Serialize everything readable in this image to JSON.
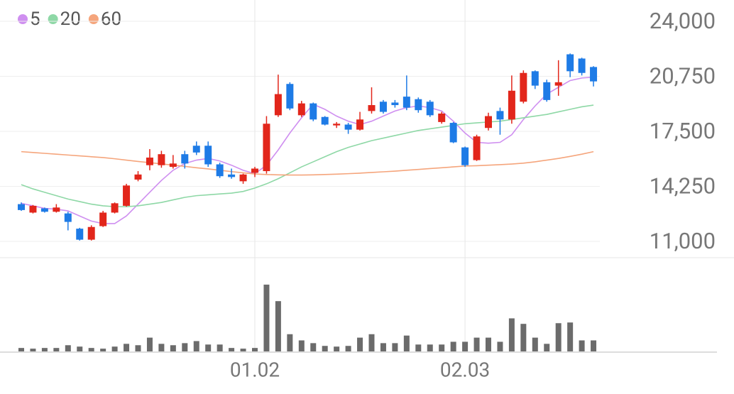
{
  "chart_data": {
    "type": "candlestick",
    "categories": [
      null,
      null,
      null,
      null,
      null,
      null,
      null,
      null,
      null,
      null,
      null,
      null,
      null,
      null,
      null,
      null,
      null,
      null,
      null,
      null,
      "01.02",
      null,
      null,
      null,
      null,
      null,
      null,
      null,
      null,
      null,
      null,
      null,
      null,
      null,
      null,
      null,
      null,
      null,
      "02.03",
      null,
      null,
      null,
      null,
      null,
      null,
      null,
      null,
      null,
      null,
      null
    ],
    "open": [
      13200,
      12700,
      12950,
      12750,
      12650,
      11750,
      11100,
      11900,
      12700,
      13100,
      14650,
      15500,
      15500,
      15400,
      16150,
      16650,
      16650,
      15550,
      14950,
      14550,
      15050,
      15150,
      18450,
      20300,
      18450,
      19150,
      18350,
      17850,
      17900,
      17600,
      18700,
      19250,
      19200,
      19550,
      19400,
      19250,
      18050,
      18000,
      16550,
      15800,
      17700,
      18700,
      18200,
      19250,
      21050,
      20400,
      20200,
      22050,
      21800,
      21300
    ],
    "high": [
      13300,
      13150,
      13000,
      13200,
      12750,
      11800,
      11950,
      12800,
      13300,
      14400,
      15150,
      16450,
      16350,
      16100,
      16350,
      16900,
      16900,
      15650,
      15300,
      15000,
      15400,
      18400,
      20850,
      20400,
      19300,
      19200,
      18400,
      18050,
      18000,
      18650,
      20100,
      19350,
      19350,
      20800,
      19500,
      19350,
      18650,
      18050,
      16600,
      17300,
      18600,
      18900,
      20800,
      21100,
      21100,
      20550,
      21700,
      22100,
      21850,
      21350
    ],
    "low": [
      12800,
      12650,
      12700,
      12700,
      11650,
      11050,
      11050,
      11850,
      12650,
      13050,
      14550,
      15200,
      15350,
      15300,
      15300,
      16100,
      15400,
      14750,
      14700,
      14400,
      14800,
      15000,
      18350,
      18750,
      18350,
      18100,
      17850,
      17700,
      17350,
      17550,
      18550,
      18550,
      18900,
      18750,
      18600,
      18350,
      17950,
      16800,
      15400,
      15750,
      17550,
      17300,
      17950,
      19150,
      20000,
      19250,
      19600,
      20700,
      20800,
      20150
    ],
    "close": [
      12850,
      13100,
      12750,
      13000,
      12150,
      11100,
      11850,
      12700,
      13250,
      14300,
      14950,
      15950,
      16150,
      15600,
      15600,
      16250,
      15550,
      14850,
      14800,
      14950,
      15300,
      17950,
      19700,
      18850,
      19150,
      18200,
      17900,
      17950,
      17600,
      18200,
      19050,
      18650,
      19050,
      18900,
      18750,
      18450,
      18550,
      16850,
      15500,
      17200,
      18400,
      18200,
      19900,
      20950,
      20200,
      19350,
      20400,
      21050,
      20950,
      20450
    ],
    "up_color": "#e2261b",
    "down_color": "#1e7be6",
    "series": [
      {
        "name": "5",
        "color": "#cf8ff0",
        "values": [
          13250,
          13100,
          12950,
          12900,
          12800,
          12500,
          12200,
          12050,
          12050,
          12500,
          13200,
          13900,
          14600,
          15200,
          15600,
          15800,
          15900,
          15750,
          15500,
          15200,
          15000,
          15500,
          16400,
          17400,
          18300,
          19100,
          18800,
          18400,
          18100,
          17900,
          18100,
          18400,
          18700,
          18900,
          19000,
          18900,
          18700,
          18100,
          17400,
          16850,
          16800,
          16850,
          17300,
          18200,
          19000,
          19700,
          20100,
          20500,
          20650,
          20700
        ]
      },
      {
        "name": "20",
        "color": "#8ed8a6",
        "values": [
          14350,
          14100,
          13900,
          13700,
          13500,
          13350,
          13200,
          13100,
          13050,
          13050,
          13100,
          13200,
          13300,
          13450,
          13600,
          13700,
          13750,
          13800,
          13850,
          13950,
          14150,
          14400,
          14700,
          15050,
          15400,
          15700,
          16000,
          16300,
          16550,
          16750,
          16950,
          17100,
          17250,
          17400,
          17550,
          17650,
          17750,
          17850,
          17950,
          18000,
          18050,
          18100,
          18200,
          18300,
          18400,
          18500,
          18650,
          18800,
          18950,
          19050
        ]
      },
      {
        "name": "60",
        "color": "#f5a57c",
        "values": [
          16300,
          16250,
          16200,
          16150,
          16100,
          16050,
          16000,
          15950,
          15880,
          15800,
          15720,
          15650,
          15580,
          15500,
          15430,
          15350,
          15280,
          15200,
          15120,
          15050,
          14980,
          14950,
          14930,
          14920,
          14920,
          14930,
          14950,
          14970,
          15000,
          15030,
          15070,
          15110,
          15150,
          15200,
          15250,
          15300,
          15350,
          15400,
          15450,
          15470,
          15500,
          15530,
          15570,
          15620,
          15700,
          15800,
          15900,
          16020,
          16150,
          16300
        ]
      }
    ],
    "volume": [
      5,
      4,
      5,
      5,
      9,
      7,
      5,
      4,
      7,
      11,
      9,
      20,
      11,
      9,
      12,
      15,
      10,
      10,
      5,
      4,
      5,
      97,
      73,
      25,
      16,
      12,
      8,
      7,
      8,
      20,
      25,
      12,
      12,
      23,
      10,
      10,
      10,
      14,
      14,
      20,
      20,
      14,
      48,
      40,
      20,
      11,
      41,
      42,
      16,
      16
    ],
    "volume_color": "#6b6b6b",
    "volume_ylim": [
      0,
      100
    ],
    "ylim": [
      11000,
      24000
    ],
    "yticks": [
      {
        "value": 24000,
        "label": "24,000"
      },
      {
        "value": 20750,
        "label": "20,750"
      },
      {
        "value": 17500,
        "label": "17,500"
      },
      {
        "value": 14250,
        "label": "14,250"
      },
      {
        "value": 11000,
        "label": "11,000"
      }
    ],
    "grid": true
  }
}
